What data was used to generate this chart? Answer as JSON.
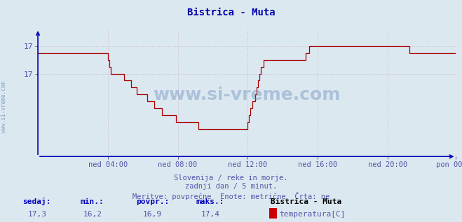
{
  "title": "Bistrica - Muta",
  "bg_color": "#dce8f0",
  "plot_bg_color": "#dce8f0",
  "line_color": "#aa0000",
  "axis_color": "#0000bb",
  "grid_color": "#ccbbcc",
  "ylabel_color": "#5555aa",
  "xlabel_color": "#5555aa",
  "title_color": "#0000aa",
  "watermark": "www.si-vreme.com",
  "watermark_color": "#6688bb",
  "subtitle1": "Slovenija / reke in morje.",
  "subtitle2": "zadnji dan / 5 minut.",
  "subtitle3": "Meritve: povprečne  Enote: metrične  Črta: ne",
  "footer_labels": [
    "sedaj:",
    "min.:",
    "povpr.:",
    "maks.:"
  ],
  "footer_values": [
    "17,3",
    "16,2",
    "16,9",
    "17,4"
  ],
  "footer_station": "Bistrica - Muta",
  "footer_series": "temperatura[C]",
  "legend_color": "#cc0000",
  "ylim": [
    15.8,
    17.65
  ],
  "ytick_vals": [
    17.0,
    17.4
  ],
  "ytick_labels": [
    "17",
    "17"
  ],
  "x_tick_labels": [
    "ned 04:00",
    "ned 08:00",
    "ned 12:00",
    "ned 16:00",
    "ned 20:00",
    "pon 00:00"
  ],
  "x_tick_positions": [
    48,
    96,
    144,
    192,
    240,
    287
  ],
  "temperature_data": [
    17.3,
    17.3,
    17.3,
    17.3,
    17.3,
    17.3,
    17.3,
    17.3,
    17.3,
    17.3,
    17.3,
    17.3,
    17.3,
    17.3,
    17.3,
    17.3,
    17.3,
    17.3,
    17.3,
    17.3,
    17.3,
    17.3,
    17.3,
    17.3,
    17.3,
    17.3,
    17.3,
    17.3,
    17.3,
    17.3,
    17.3,
    17.3,
    17.3,
    17.3,
    17.3,
    17.3,
    17.3,
    17.3,
    17.3,
    17.3,
    17.3,
    17.3,
    17.3,
    17.3,
    17.3,
    17.3,
    17.3,
    17.3,
    17.2,
    17.1,
    17.0,
    17.0,
    17.0,
    17.0,
    17.0,
    17.0,
    17.0,
    17.0,
    17.0,
    16.9,
    16.9,
    16.9,
    16.9,
    16.9,
    16.8,
    16.8,
    16.8,
    16.8,
    16.7,
    16.7,
    16.7,
    16.7,
    16.7,
    16.7,
    16.7,
    16.6,
    16.6,
    16.6,
    16.6,
    16.6,
    16.5,
    16.5,
    16.5,
    16.5,
    16.5,
    16.4,
    16.4,
    16.4,
    16.4,
    16.4,
    16.4,
    16.4,
    16.4,
    16.4,
    16.4,
    16.3,
    16.3,
    16.3,
    16.3,
    16.3,
    16.3,
    16.3,
    16.3,
    16.3,
    16.3,
    16.3,
    16.3,
    16.3,
    16.3,
    16.3,
    16.2,
    16.2,
    16.2,
    16.2,
    16.2,
    16.2,
    16.2,
    16.2,
    16.2,
    16.2,
    16.2,
    16.2,
    16.2,
    16.2,
    16.2,
    16.2,
    16.2,
    16.2,
    16.2,
    16.2,
    16.2,
    16.2,
    16.2,
    16.2,
    16.2,
    16.2,
    16.2,
    16.2,
    16.2,
    16.2,
    16.2,
    16.2,
    16.2,
    16.2,
    16.3,
    16.4,
    16.5,
    16.6,
    16.6,
    16.7,
    16.8,
    16.9,
    17.0,
    17.1,
    17.1,
    17.2,
    17.2,
    17.2,
    17.2,
    17.2,
    17.2,
    17.2,
    17.2,
    17.2,
    17.2,
    17.2,
    17.2,
    17.2,
    17.2,
    17.2,
    17.2,
    17.2,
    17.2,
    17.2,
    17.2,
    17.2,
    17.2,
    17.2,
    17.2,
    17.2,
    17.2,
    17.2,
    17.2,
    17.2,
    17.3,
    17.3,
    17.4,
    17.4,
    17.4,
    17.4,
    17.4,
    17.4,
    17.4,
    17.4,
    17.4,
    17.4,
    17.4,
    17.4,
    17.4,
    17.4,
    17.4,
    17.4,
    17.4,
    17.4,
    17.4,
    17.4,
    17.4,
    17.4,
    17.4,
    17.4,
    17.4,
    17.4,
    17.4,
    17.4,
    17.4,
    17.4,
    17.4,
    17.4,
    17.4,
    17.4,
    17.4,
    17.4,
    17.4,
    17.4,
    17.4,
    17.4,
    17.4,
    17.4,
    17.4,
    17.4,
    17.4,
    17.4,
    17.4,
    17.4,
    17.4,
    17.4,
    17.4,
    17.4,
    17.4,
    17.4,
    17.4,
    17.4,
    17.4,
    17.4,
    17.4,
    17.4,
    17.4,
    17.4,
    17.4,
    17.4,
    17.4,
    17.4,
    17.4,
    17.4,
    17.4,
    17.3,
    17.3,
    17.3,
    17.3,
    17.3,
    17.3,
    17.3,
    17.3,
    17.3,
    17.3,
    17.3,
    17.3,
    17.3,
    17.3,
    17.3,
    17.3,
    17.3,
    17.3,
    17.3,
    17.3,
    17.3,
    17.3,
    17.3,
    17.3,
    17.3,
    17.3,
    17.3,
    17.3,
    17.3,
    17.3,
    17.3,
    17.3,
    17.3
  ]
}
